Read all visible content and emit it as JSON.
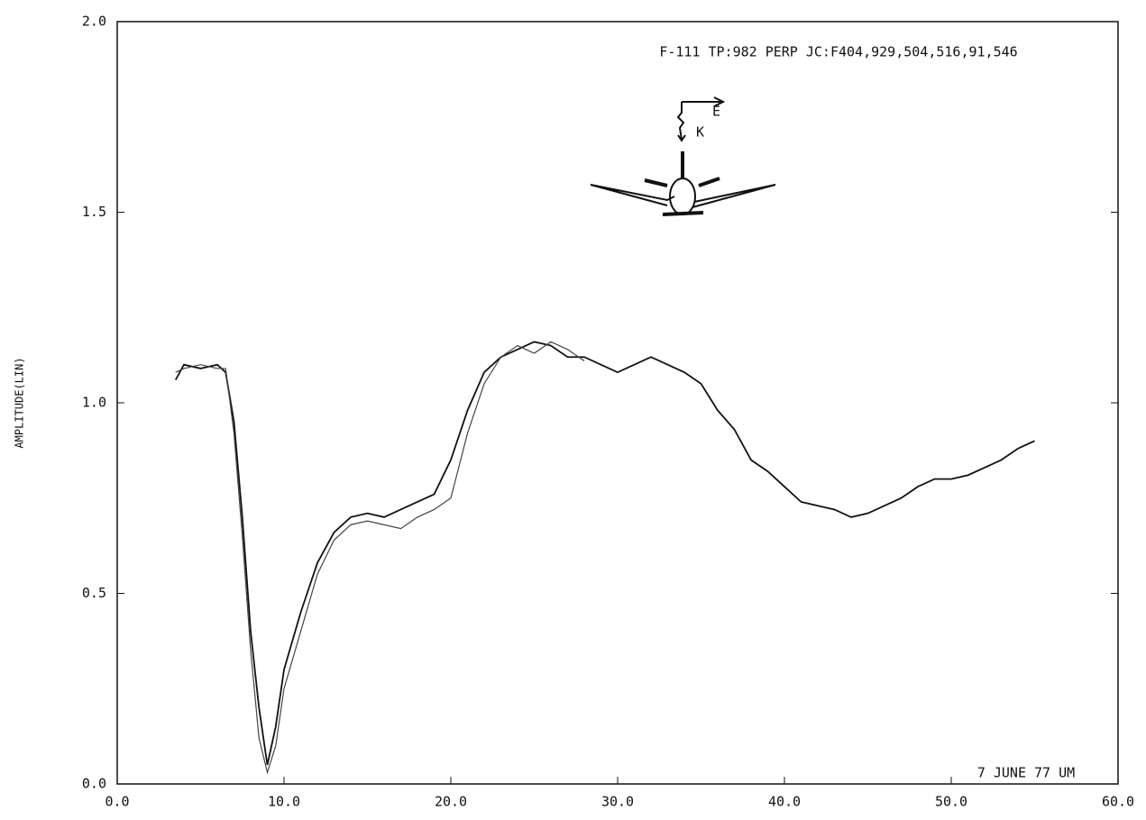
{
  "chart_data": {
    "type": "line",
    "annotations": {
      "header": "F-111 TP:982 PERP JC:F404,929,504,516,91,546",
      "footer": "7 JUNE 77 UM",
      "e": "E",
      "k": "K"
    },
    "ylabel": "AMPLITUDE(LIN)",
    "x": [
      3.5,
      4,
      5,
      6,
      6.5,
      7,
      7.5,
      8,
      8.5,
      9,
      9.5,
      10,
      11,
      12,
      13,
      14,
      15,
      16,
      17,
      18,
      19,
      20,
      21,
      22,
      23,
      24,
      25,
      26,
      27,
      28,
      29,
      30,
      31,
      32,
      33,
      34,
      35,
      36,
      37,
      38,
      39,
      40,
      41,
      42,
      43,
      44,
      45,
      46,
      47,
      48,
      49,
      50,
      51,
      52,
      53,
      54,
      55
    ],
    "series": [
      {
        "color": "#111111",
        "values": [
          1.06,
          1.1,
          1.09,
          1.1,
          1.08,
          0.95,
          0.7,
          0.4,
          0.2,
          0.05,
          0.15,
          0.3,
          0.45,
          0.58,
          0.66,
          0.7,
          0.71,
          0.7,
          0.72,
          0.74,
          0.76,
          0.85,
          0.98,
          1.08,
          1.12,
          1.14,
          1.16,
          1.15,
          1.12,
          1.12,
          1.1,
          1.08,
          1.1,
          1.12,
          1.1,
          1.08,
          1.05,
          0.98,
          0.93,
          0.85,
          0.82,
          0.78,
          0.74,
          0.73,
          0.72,
          0.7,
          0.71,
          0.73,
          0.75,
          0.78,
          0.8,
          0.8,
          0.81,
          0.83,
          0.85,
          0.88,
          0.9
        ]
      },
      {
        "color": "#444444",
        "values": [
          1.08,
          1.09,
          1.1,
          1.09,
          1.09,
          0.92,
          0.65,
          0.35,
          0.12,
          0.03,
          0.1,
          0.25,
          0.4,
          0.55,
          0.64,
          0.68,
          0.69,
          0.68,
          0.67,
          0.7,
          0.72,
          0.75,
          0.92,
          1.05,
          1.12,
          1.15,
          1.13,
          1.16,
          1.14,
          1.11,
          null,
          null,
          null,
          null,
          null,
          null,
          null,
          null,
          null,
          null,
          null,
          null,
          null,
          null,
          null,
          null,
          null,
          null,
          null,
          null,
          null,
          null,
          null,
          null,
          null,
          null,
          null
        ]
      }
    ],
    "xlim": [
      0,
      60
    ],
    "ylim": [
      0,
      2
    ],
    "xticks": [
      {
        "value": 0,
        "label": "0.0"
      },
      {
        "value": 10,
        "label": "10.0"
      },
      {
        "value": 20,
        "label": "20.0"
      },
      {
        "value": 30,
        "label": "30.0"
      },
      {
        "value": 40,
        "label": "40.0"
      },
      {
        "value": 50,
        "label": "50.0"
      },
      {
        "value": 60,
        "label": "60.0"
      }
    ],
    "yticks": [
      {
        "value": 0,
        "label": "0.0"
      },
      0.5,
      {
        "value": 1,
        "label": "1.0"
      },
      1.5,
      {
        "value": 2,
        "label": "2.0"
      }
    ]
  }
}
